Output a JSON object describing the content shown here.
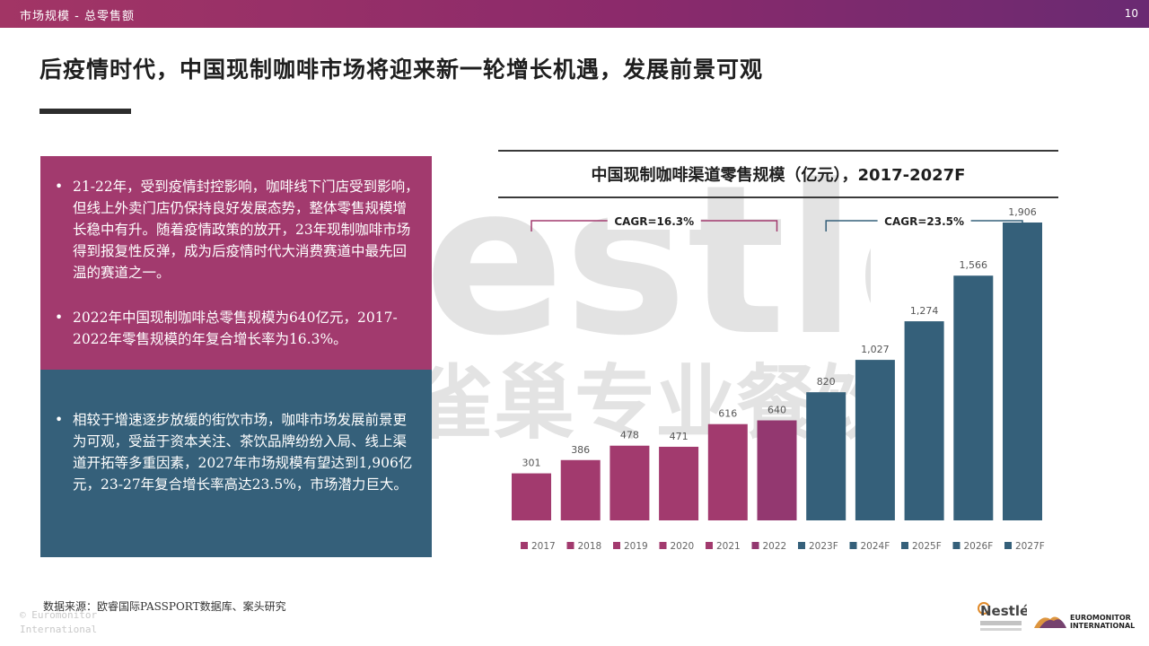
{
  "header": {
    "breadcrumb": "市场规模 - 总零售额",
    "page_number": "10"
  },
  "headline": "后疫情时代，中国现制咖啡市场将迎来新一轮增长机遇，发展前景可观",
  "left_panel": {
    "pink_bullets": [
      "21-22年，受到疫情封控影响，咖啡线下门店受到影响，但线上外卖门店仍保持良好发展态势，整体零售规模增长稳中有升。随着疫情政策的放开，23年现制咖啡市场得到报复性反弹，成为后疫情时代大消费赛道中最先回温的赛道之一。",
      "2022年中国现制咖啡总零售规模为640亿元，2017-2022年零售规模的年复合增长率为16.3%。"
    ],
    "teal_bullets": [
      "相较于增速逐步放缓的街饮市场，咖啡市场发展前景更为可观，受益于资本关注、茶饮品牌纷纷入局、线上渠道开拓等多重因素，2027年市场规模有望达到1,906亿元，23-27年复合增长率高达23.5%，市场潜力巨大。"
    ]
  },
  "chart_data": {
    "type": "bar",
    "title": "中国现制咖啡渠道零售规模（亿元），2017-2027F",
    "categories": [
      "2017",
      "2018",
      "2019",
      "2020",
      "2021",
      "2022",
      "2023F",
      "2024F",
      "2025F",
      "2026F",
      "2027F"
    ],
    "values": [
      301,
      386,
      478,
      471,
      616,
      640,
      820,
      1027,
      1274,
      1566,
      1906
    ],
    "value_labels": [
      "301",
      "386",
      "478",
      "471",
      "616",
      "640",
      "820",
      "1,027",
      "1,274",
      "1,566",
      "1,906"
    ],
    "colors": [
      "#a23a6e",
      "#a23a6e",
      "#a23a6e",
      "#a23a6e",
      "#a23a6e",
      "#933870",
      "#35607a",
      "#35607a",
      "#35607a",
      "#35607a",
      "#35607a"
    ],
    "ylim": [
      0,
      2000
    ],
    "annotations": [
      {
        "text": "CAGR=16.3%",
        "from": "2017",
        "to": "2022",
        "color": "#a23a6e"
      },
      {
        "text": "CAGR=23.5%",
        "from": "2023F",
        "to": "2027F",
        "color": "#35607a"
      }
    ],
    "legend_position": "bottom"
  },
  "watermark": {
    "text": "Nestlé",
    "subtext": "雀巢专业餐饮"
  },
  "footer": {
    "source": "数据来源：欧睿国际PASSPORT数据库、案头研究",
    "copyright_1": "© Euromonitor",
    "copyright_2": "International"
  },
  "logos": {
    "nestle_text": "Nestlé",
    "euromonitor_1": "EUROMONITOR",
    "euromonitor_2": "INTERNATIONAL"
  }
}
